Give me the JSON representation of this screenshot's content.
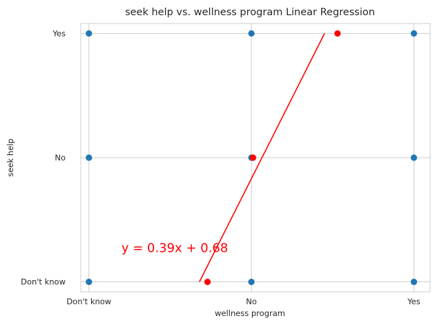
{
  "chart_data": {
    "type": "scatter",
    "title": "seek help vs. wellness program Linear Regression",
    "xlabel": "wellness program",
    "ylabel": "seek help",
    "x_ticks": [
      "Don't know",
      "No",
      "Yes"
    ],
    "y_ticks": [
      "Don't know",
      "No",
      "Yes"
    ],
    "xlim": [
      -0.05,
      2.1
    ],
    "ylim": [
      -0.08,
      2.08
    ],
    "grid": true,
    "series": [
      {
        "kind": "points",
        "color": "#1f77b4",
        "points": [
          {
            "x": 0,
            "y": 0
          },
          {
            "x": 0,
            "y": 1
          },
          {
            "x": 0,
            "y": 2
          },
          {
            "x": 1,
            "y": 0
          },
          {
            "x": 1,
            "y": 1
          },
          {
            "x": 1,
            "y": 2
          },
          {
            "x": 2,
            "y": 0
          },
          {
            "x": 2,
            "y": 1
          },
          {
            "x": 2,
            "y": 2
          }
        ]
      },
      {
        "kind": "points",
        "color": "#ff0000",
        "points": [
          {
            "x": 0.73,
            "y": 0.0
          },
          {
            "x": 1.01,
            "y": 1.0
          },
          {
            "x": 1.53,
            "y": 2.0
          }
        ]
      },
      {
        "kind": "line",
        "color": "#ff0000",
        "points": [
          {
            "x": 0.68,
            "y": 0.0
          },
          {
            "x": 1.45,
            "y": 2.0
          }
        ]
      }
    ],
    "annotation": {
      "text": "y = 0.39x + 0.68",
      "x": 0.2,
      "y": 0.24,
      "color": "#ff0000"
    }
  }
}
